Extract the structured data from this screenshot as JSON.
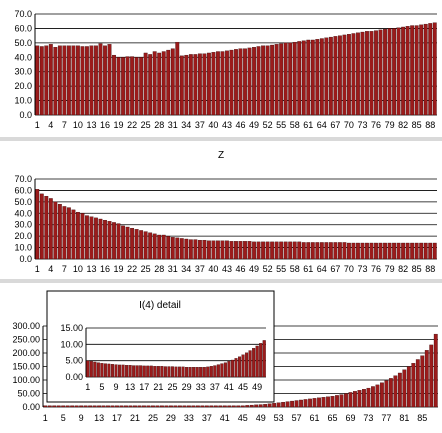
{
  "chart_data": [
    {
      "type": "bar",
      "title": "",
      "ylim": [
        0,
        70
      ],
      "yticks": [
        "0.0",
        "10.0",
        "20.0",
        "30.0",
        "40.0",
        "50.0",
        "60.0",
        "70.0"
      ],
      "xtick_labels": [
        "1",
        "4",
        "7",
        "10",
        "13",
        "16",
        "19",
        "22",
        "25",
        "28",
        "31",
        "34",
        "37",
        "40",
        "43",
        "46",
        "49",
        "52",
        "55",
        "58",
        "61",
        "64",
        "67",
        "70",
        "73",
        "76",
        "79",
        "82",
        "85",
        "88"
      ],
      "categories": [
        1,
        2,
        3,
        4,
        5,
        6,
        7,
        8,
        9,
        10,
        11,
        12,
        13,
        14,
        15,
        16,
        17,
        18,
        19,
        20,
        21,
        22,
        23,
        24,
        25,
        26,
        27,
        28,
        29,
        30,
        31,
        32,
        33,
        34,
        35,
        36,
        37,
        38,
        39,
        40,
        41,
        42,
        43,
        44,
        45,
        46,
        47,
        48,
        49,
        50,
        51,
        52,
        53,
        54,
        55,
        56,
        57,
        58,
        59,
        60,
        61,
        62,
        63,
        64,
        65,
        66,
        67,
        68,
        69,
        70,
        71,
        72,
        73,
        74,
        75,
        76,
        77,
        78,
        79,
        80,
        81,
        82,
        83,
        84,
        85,
        86,
        87,
        88,
        89
      ],
      "values": [
        48,
        47.5,
        48,
        49,
        47,
        48,
        48,
        48,
        48,
        48,
        47.5,
        47.5,
        48,
        48,
        49.5,
        48,
        49,
        41.5,
        40,
        40,
        40.5,
        40.5,
        40,
        40,
        43,
        42,
        44,
        43,
        44,
        45,
        46,
        50.5,
        41,
        41.5,
        42,
        42,
        42.5,
        42.5,
        43,
        43.5,
        44,
        44,
        44.5,
        45,
        45.5,
        46,
        46,
        46.5,
        47,
        47.5,
        48,
        48,
        48.5,
        49,
        49.5,
        50,
        50,
        50.5,
        51,
        51.5,
        52,
        52,
        52.5,
        53,
        53.5,
        54,
        54.5,
        55,
        55.5,
        56,
        56.5,
        57,
        57.5,
        58,
        58,
        58.5,
        59,
        59.5,
        60,
        60,
        60.5,
        61,
        61.5,
        62,
        62,
        62.5,
        63,
        63.5,
        64
      ]
    },
    {
      "type": "bar",
      "title": "Z",
      "ylim": [
        0,
        70
      ],
      "yticks": [
        "0.0",
        "10.0",
        "20.0",
        "30.0",
        "40.0",
        "50.0",
        "60.0",
        "70.0"
      ],
      "xtick_labels": [
        "1",
        "4",
        "7",
        "10",
        "13",
        "16",
        "19",
        "22",
        "25",
        "28",
        "31",
        "34",
        "37",
        "40",
        "43",
        "46",
        "49",
        "52",
        "55",
        "58",
        "61",
        "64",
        "67",
        "70",
        "73",
        "76",
        "79",
        "82",
        "85",
        "88"
      ],
      "categories": [
        1,
        2,
        3,
        4,
        5,
        6,
        7,
        8,
        9,
        10,
        11,
        12,
        13,
        14,
        15,
        16,
        17,
        18,
        19,
        20,
        21,
        22,
        23,
        24,
        25,
        26,
        27,
        28,
        29,
        30,
        31,
        32,
        33,
        34,
        35,
        36,
        37,
        38,
        39,
        40,
        41,
        42,
        43,
        44,
        45,
        46,
        47,
        48,
        49,
        50,
        51,
        52,
        53,
        54,
        55,
        56,
        57,
        58,
        59,
        60,
        61,
        62,
        63,
        64,
        65,
        66,
        67,
        68,
        69,
        70,
        71,
        72,
        73,
        74,
        75,
        76,
        77,
        78,
        79,
        80,
        81,
        82,
        83,
        84,
        85,
        86,
        87,
        88,
        89
      ],
      "values": [
        61,
        57,
        55,
        53,
        50,
        48,
        46,
        45,
        43,
        41,
        40,
        38,
        37,
        36,
        35,
        34,
        33,
        32,
        31,
        29,
        28,
        27,
        26,
        25,
        24,
        23,
        22,
        21,
        21,
        20,
        19,
        18.5,
        18,
        17.5,
        17,
        17,
        16.5,
        16.5,
        16,
        16,
        16,
        16,
        16,
        15.5,
        15.5,
        15.5,
        15.5,
        15.5,
        15,
        15,
        15,
        15,
        15,
        15,
        15,
        15,
        15,
        15,
        15,
        14.5,
        14.5,
        14.5,
        14.5,
        14.5,
        14.5,
        14.5,
        14.5,
        14.5,
        14.5,
        14,
        14,
        14,
        14,
        14,
        14,
        14,
        14,
        14,
        14,
        14,
        14,
        14,
        14,
        14,
        14,
        14,
        14,
        14,
        14
      ]
    },
    {
      "type": "bar",
      "title": "",
      "ylim": [
        0,
        300
      ],
      "yticks": [
        "0.00",
        "50.00",
        "100.00",
        "150.00",
        "200.00",
        "250.00",
        "300.00"
      ],
      "xtick_labels": [
        "1",
        "5",
        "9",
        "13",
        "17",
        "21",
        "25",
        "29",
        "33",
        "37",
        "41",
        "45",
        "49",
        "53",
        "57",
        "61",
        "65",
        "69",
        "73",
        "77",
        "81",
        "85"
      ],
      "categories": [
        1,
        2,
        3,
        4,
        5,
        6,
        7,
        8,
        9,
        10,
        11,
        12,
        13,
        14,
        15,
        16,
        17,
        18,
        19,
        20,
        21,
        22,
        23,
        24,
        25,
        26,
        27,
        28,
        29,
        30,
        31,
        32,
        33,
        34,
        35,
        36,
        37,
        38,
        39,
        40,
        41,
        42,
        43,
        44,
        45,
        46,
        47,
        48,
        49,
        50,
        51,
        52,
        53,
        54,
        55,
        56,
        57,
        58,
        59,
        60,
        61,
        62,
        63,
        64,
        65,
        66,
        67,
        68,
        69,
        70,
        71,
        72,
        73,
        74,
        75,
        76,
        77,
        78,
        79,
        80,
        81,
        82,
        83,
        84,
        85,
        86,
        87,
        88
      ],
      "values": [
        5,
        5,
        5,
        5,
        5,
        5,
        5,
        5,
        5,
        5,
        5,
        5,
        5,
        5,
        5,
        5,
        5,
        5,
        5,
        5,
        5,
        5,
        5,
        5,
        5,
        5,
        5,
        5,
        5,
        5,
        5,
        5,
        5,
        5,
        5,
        5,
        5,
        5,
        5,
        5,
        5,
        5,
        5,
        5,
        5,
        6,
        7,
        8,
        9,
        10,
        12,
        14,
        16,
        18,
        20,
        22,
        24,
        26,
        28,
        30,
        32,
        34,
        36,
        38,
        40,
        43,
        46,
        50,
        54,
        58,
        62,
        66,
        70,
        76,
        82,
        90,
        98,
        106,
        116,
        126,
        138,
        150,
        162,
        176,
        190,
        210,
        230,
        270
      ]
    },
    {
      "type": "bar",
      "title": "I(4) detail",
      "ylim": [
        0,
        15
      ],
      "yticks": [
        "0.00",
        "5.00",
        "10.00",
        "15.00"
      ],
      "xtick_labels": [
        "1",
        "5",
        "9",
        "13",
        "17",
        "21",
        "25",
        "29",
        "33",
        "37",
        "41",
        "45",
        "49"
      ],
      "categories": [
        1,
        2,
        3,
        4,
        5,
        6,
        7,
        8,
        9,
        10,
        11,
        12,
        13,
        14,
        15,
        16,
        17,
        18,
        19,
        20,
        21,
        22,
        23,
        24,
        25,
        26,
        27,
        28,
        29,
        30,
        31,
        32,
        33,
        34,
        35,
        36,
        37,
        38,
        39,
        40,
        41,
        42,
        43,
        44,
        45,
        46,
        47,
        48,
        49,
        50,
        51
      ],
      "values": [
        5,
        4.8,
        4.6,
        4.4,
        4.2,
        4.1,
        4,
        3.9,
        3.8,
        3.7,
        3.7,
        3.6,
        3.6,
        3.5,
        3.5,
        3.5,
        3.4,
        3.4,
        3.4,
        3.3,
        3.3,
        3.3,
        3.2,
        3.2,
        3.2,
        3.1,
        3.1,
        3.1,
        3,
        3,
        3,
        3,
        3,
        3,
        3.1,
        3.3,
        3.5,
        3.8,
        4.1,
        4.4,
        4.8,
        5.2,
        5.7,
        6.2,
        6.8,
        7.4,
        8.1,
        8.8,
        9.5,
        10.3,
        11.2
      ]
    }
  ],
  "colors": {
    "bar": "#9b1b1b",
    "bar_edge": "#2a0000",
    "grid": "#000000",
    "axis": "#000000"
  }
}
